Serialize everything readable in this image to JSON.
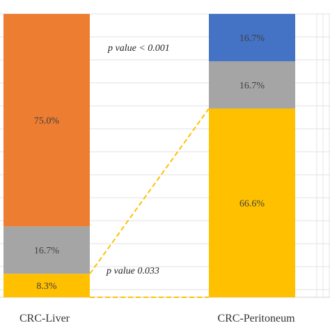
{
  "chart_data": {
    "type": "bar",
    "stacked": true,
    "categories": [
      "CRC-Liver",
      "CRC-Peritoneum"
    ],
    "series": [
      {
        "values": [
          8.3,
          66.6
        ],
        "labels": [
          "8.3%",
          "66.6%"
        ],
        "color": "#FFC000"
      },
      {
        "values": [
          16.7,
          16.7
        ],
        "labels": [
          "16.7%",
          "16.7%"
        ],
        "color": "#A5A5A5"
      },
      {
        "values": [
          75.0,
          0
        ],
        "labels": [
          "75.0%",
          ""
        ],
        "color": "#ED7D31"
      },
      {
        "values": [
          0,
          16.7
        ],
        "labels": [
          "",
          "16.7%"
        ],
        "color": "#4472C4"
      }
    ],
    "ylim": [
      0,
      100
    ],
    "grid": true,
    "annotations": [
      {
        "text": "p value < 0.001",
        "color": "#ED7D31",
        "connects_series": 2
      },
      {
        "text": "p value 0.033",
        "color": "#FFC000",
        "connects_series": 0
      }
    ]
  }
}
